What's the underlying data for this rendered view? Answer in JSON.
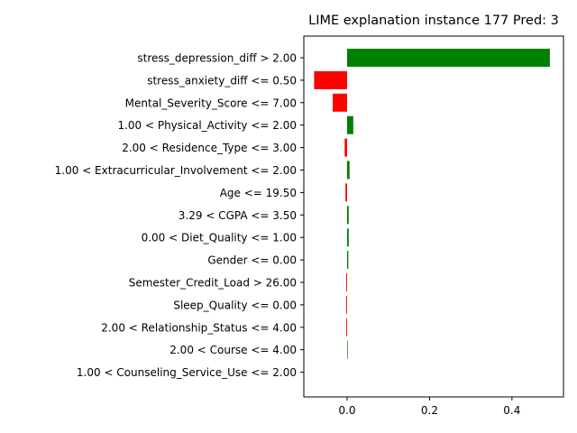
{
  "chart_data": {
    "type": "bar",
    "orientation": "horizontal",
    "title": "LIME explanation instance 177 Pred: 3",
    "xlabel": "",
    "ylabel": "",
    "xlim": [
      -0.105,
      0.525
    ],
    "xticks": [
      0.0,
      0.2,
      0.4
    ],
    "xtick_labels": [
      "0.0",
      "0.2",
      "0.4"
    ],
    "grid": false,
    "positive_color": "#008000",
    "negative_color": "#ff0000",
    "categories": [
      "stress_depression_diff > 2.00",
      "stress_anxiety_diff <= 0.50",
      "Mental_Severity_Score <= 7.00",
      "1.00 < Physical_Activity <= 2.00",
      "2.00 < Residence_Type <= 3.00",
      "1.00 < Extracurricular_Involvement <= 2.00",
      "Age <= 19.50",
      "3.29 < CGPA <= 3.50",
      "0.00 < Diet_Quality <= 1.00",
      "Gender <= 0.00",
      "Semester_Credit_Load > 26.00",
      "Sleep_Quality <= 0.00",
      "2.00 < Relationship_Status <= 4.00",
      "2.00 < Course <= 4.00",
      "1.00 < Counseling_Service_Use <= 2.00"
    ],
    "values": [
      0.492,
      -0.08,
      -0.035,
      0.015,
      -0.006,
      0.006,
      -0.004,
      0.004,
      0.004,
      0.003,
      -0.002,
      -0.002,
      -0.002,
      0.0015,
      0.0
    ]
  }
}
